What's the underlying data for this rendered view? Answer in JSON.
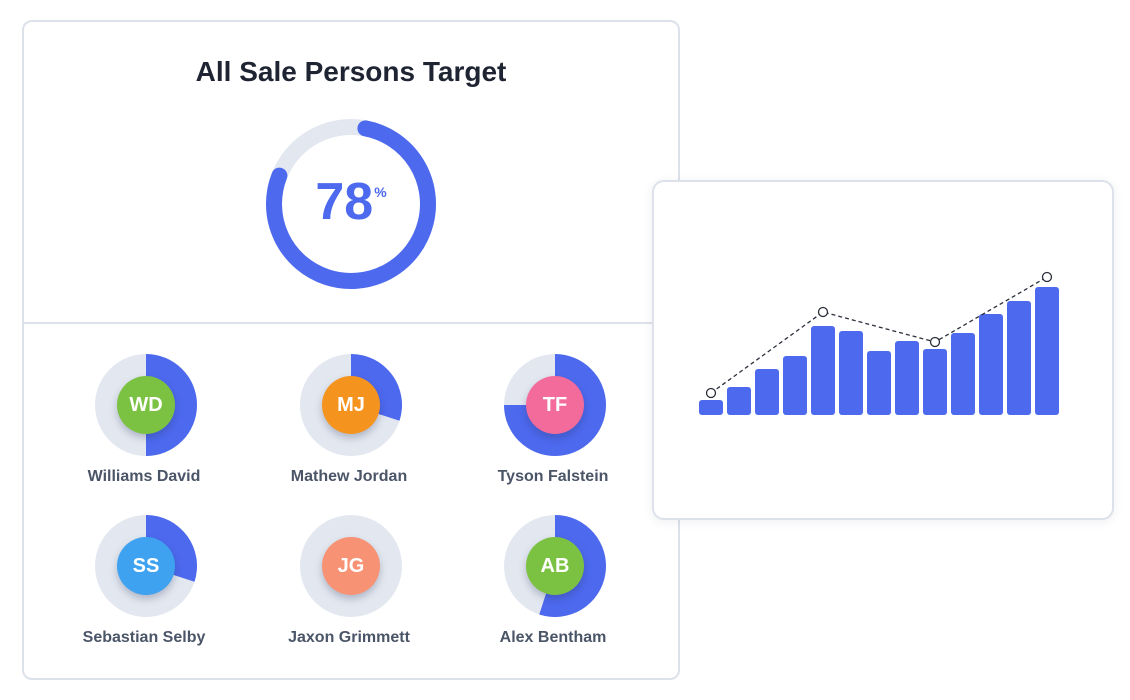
{
  "target_card": {
    "title": "All Sale Persons Target",
    "overall_percent": 78,
    "overall_value": "78",
    "overall_unit": "%"
  },
  "colors": {
    "accent": "#4d69ee",
    "track": "#e3e8f0",
    "card_border": "#dde1ea",
    "title": "#1f2433",
    "name": "#4b5568"
  },
  "salespersons": [
    {
      "initials": "WD",
      "name": "Williams David",
      "progress": 0.5,
      "avatar_color": "#7cc242"
    },
    {
      "initials": "MJ",
      "name": "Mathew Jordan",
      "progress": 0.3,
      "avatar_color": "#f5931f"
    },
    {
      "initials": "TF",
      "name": "Tyson Falstein",
      "progress": 0.75,
      "avatar_color": "#f26b9b"
    },
    {
      "initials": "SS",
      "name": "Sebastian Selby",
      "progress": 0.3,
      "avatar_color": "#3ea2f0"
    },
    {
      "initials": "JG",
      "name": "Jaxon Grimmett",
      "progress": 0,
      "avatar_color": "#f79274"
    },
    {
      "initials": "AB",
      "name": "Alex Bentham",
      "progress": 0.55,
      "avatar_color": "#7cc242"
    }
  ],
  "chart_data": {
    "type": "bar",
    "values": [
      15,
      28,
      46,
      59,
      89,
      84,
      64,
      74,
      66,
      82,
      101,
      114,
      128
    ],
    "trend_line": [
      {
        "index": 0,
        "value": 22
      },
      {
        "index": 4,
        "value": 103
      },
      {
        "index": 8,
        "value": 73
      },
      {
        "index": 12,
        "value": 138
      }
    ],
    "ylim": [
      0,
      145
    ],
    "grid": false,
    "legend": "none"
  }
}
